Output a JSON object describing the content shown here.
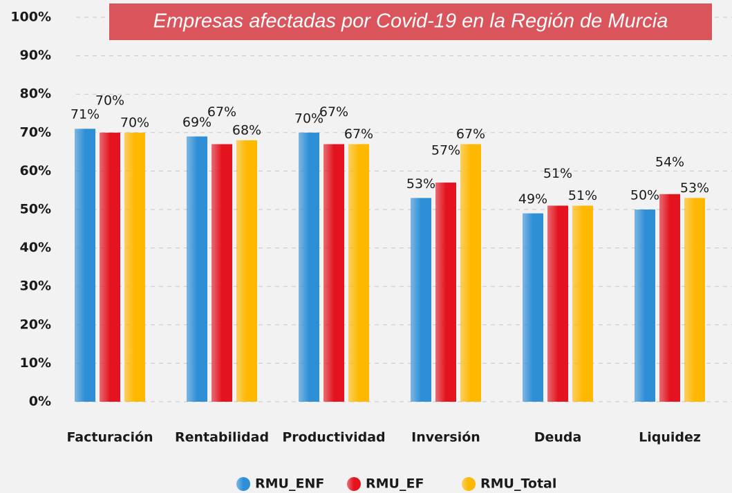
{
  "chart_data": {
    "type": "bar",
    "title": "Empresas afectadas por Covid-19 en la Región de Murcia",
    "categories": [
      "Facturación",
      "Rentabilidad",
      "Productividad",
      "Inversión",
      "Deuda",
      "Liquidez"
    ],
    "series": [
      {
        "name": "RMU_ENF",
        "color": "#2f8fd6",
        "values": [
          71,
          69,
          70,
          53,
          49,
          50
        ],
        "value_labels": [
          "71%",
          "69%",
          "70%",
          "53%",
          "49%",
          "50%"
        ]
      },
      {
        "name": "RMU_EF",
        "color": "#e3141f",
        "values": [
          70,
          67,
          67,
          57,
          51,
          54
        ],
        "value_labels": [
          "70%",
          "67%",
          "67%",
          "57%",
          "51%",
          "54%"
        ]
      },
      {
        "name": "RMU_Total",
        "color": "#ffb800",
        "values": [
          70,
          68,
          67,
          67,
          51,
          53
        ],
        "value_labels": [
          "70%",
          "68%",
          "67%",
          "67%",
          "51%",
          "53%"
        ]
      }
    ],
    "ylim": [
      0,
      100
    ],
    "yticks": [
      {
        "value": 0,
        "label": "0%"
      },
      {
        "value": 10,
        "label": "10%"
      },
      {
        "value": 20,
        "label": "20%"
      },
      {
        "value": 30,
        "label": "30%"
      },
      {
        "value": 40,
        "label": "40%"
      },
      {
        "value": 50,
        "label": "50%"
      },
      {
        "value": 60,
        "label": "60%"
      },
      {
        "value": 70,
        "label": "70%"
      },
      {
        "value": 80,
        "label": "80%"
      },
      {
        "value": 90,
        "label": "90%"
      },
      {
        "value": 100,
        "label": "100%"
      }
    ],
    "grid": true,
    "legend": "bottom"
  }
}
